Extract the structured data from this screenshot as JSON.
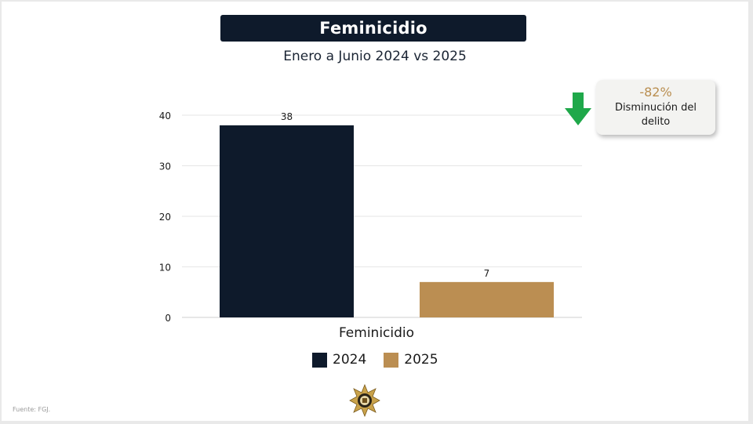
{
  "title": "Feminicidio",
  "subtitle": "Enero a Junio 2024 vs 2025",
  "callout": {
    "percent": "-82%",
    "description": "Disminución del delito",
    "icon": "arrow-down-icon",
    "arrow_color": "#1fa84a"
  },
  "source": "Fuente: FGJ.",
  "colors": {
    "navy": "#0e1a2b",
    "gold": "#bb8e52"
  },
  "chart_data": {
    "type": "bar",
    "categories": [
      "Feminicidio"
    ],
    "series": [
      {
        "name": "2024",
        "values": [
          38
        ],
        "color": "#0e1a2b"
      },
      {
        "name": "2025",
        "values": [
          7
        ],
        "color": "#bb8e52"
      }
    ],
    "xlabel": "Feminicidio",
    "ylabel": "",
    "ylim": [
      0,
      40
    ],
    "yticks": [
      0,
      10,
      20,
      30,
      40
    ],
    "data_labels": [
      "38",
      "7"
    ],
    "grid": true,
    "legend": "bottom"
  }
}
